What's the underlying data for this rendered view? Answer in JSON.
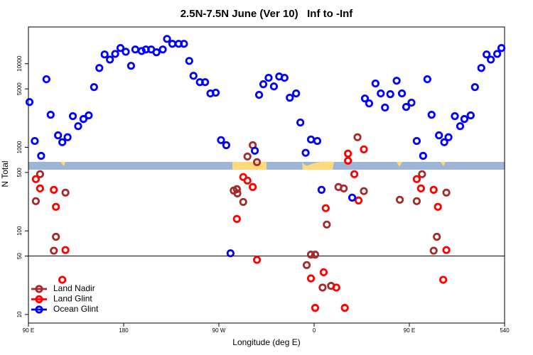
{
  "chart_data": {
    "type": "scatter",
    "title": "2.5N-7.5N June (Ver 10)   Inf to -Inf",
    "x_label": "Longitude (deg E)",
    "y_label": "N Total",
    "xlim": [
      90,
      540
    ],
    "xticks": [
      {
        "value": 90,
        "label": "90 E"
      },
      180,
      {
        "value": 270,
        "label": "90 W"
      },
      {
        "value": 360,
        "label": "0"
      },
      {
        "value": 450,
        "label": "90 E"
      },
      540
    ],
    "ylim": [
      7.9,
      27500
    ],
    "yticks": [
      10,
      50,
      100,
      500,
      1000,
      5000,
      10000
    ],
    "log_y": true,
    "hline": 50,
    "legend": "bottom-left",
    "series": [
      {
        "name": "Land Nadir",
        "color": "#a52a2a",
        "x": [
          101,
          97,
          125,
          116,
          114,
          302,
          306,
          297,
          287,
          284,
          287.5,
          293,
          357,
          361,
          353,
          368,
          376,
          372,
          383,
          388,
          401,
          407,
          441,
          462,
          457,
          485,
          476,
          473
        ],
        "values": [
          477,
          227,
          287,
          85,
          58,
          1060,
          664,
          776,
          316,
          304,
          281,
          222,
          52,
          52,
          39,
          21,
          22,
          119,
          335,
          322,
          1320,
          299,
          236,
          477,
          227,
          287,
          85,
          58
        ]
      },
      {
        "name": "Land Glint",
        "color": "#ff0000",
        "x": [
          97,
          101,
          114,
          116,
          125,
          122,
          287,
          293,
          297,
          302,
          306,
          357,
          369,
          361,
          371,
          381,
          389,
          392,
          392,
          398,
          402,
          407,
          457,
          461,
          473,
          477,
          485,
          482
        ],
        "values": [
          416,
          322,
          310,
          194,
          59,
          26,
          139,
          441,
          400,
          335,
          45,
          27,
          32,
          12,
          187,
          21,
          12,
          840,
          690,
          477,
          231,
          944,
          416,
          322,
          310,
          194,
          59,
          26
        ]
      },
      {
        "name": "Ocean Glint",
        "color": "#0000ff",
        "x": [
          91,
          96,
          102,
          107,
          111,
          118,
          122,
          127,
          132,
          137,
          142,
          147,
          152,
          157,
          162,
          167,
          172,
          177,
          182,
          187,
          191,
          197,
          201,
          206,
          211,
          217,
          221,
          226,
          232,
          237,
          242,
          246,
          252,
          257,
          262,
          267,
          272,
          277,
          281,
          304,
          308,
          312,
          317,
          322,
          327,
          332,
          337,
          343,
          347,
          352,
          357,
          363,
          367,
          396,
          408,
          412,
          418,
          423,
          427,
          432,
          438,
          443,
          447,
          452,
          457,
          463,
          467,
          471,
          478,
          483,
          487,
          493,
          498,
          502,
          508,
          512,
          518,
          523,
          527,
          533,
          537
        ],
        "values": [
          3480,
          1190,
          790,
          6520,
          2450,
          1390,
          1150,
          1320,
          2360,
          1790,
          2180,
          2410,
          5250,
          8890,
          12900,
          11200,
          13100,
          15400,
          13900,
          9440,
          14800,
          14200,
          14800,
          14800,
          13700,
          14800,
          19800,
          17300,
          17300,
          17300,
          10800,
          7170,
          6020,
          6020,
          4410,
          4500,
          1220,
          1060,
          54,
          910,
          4240,
          5680,
          6780,
          5350,
          7030,
          6780,
          3920,
          4410,
          1980,
          860,
          1240,
          1190,
          310,
          250,
          3840,
          3350,
          5800,
          4410,
          2990,
          4320,
          6260,
          4410,
          3040,
          3420,
          1190,
          790,
          6520,
          2450,
          1390,
          1150,
          1320,
          2360,
          1790,
          2180,
          2410,
          5250,
          8890,
          12900,
          11200,
          13100,
          15400
        ]
      }
    ]
  }
}
